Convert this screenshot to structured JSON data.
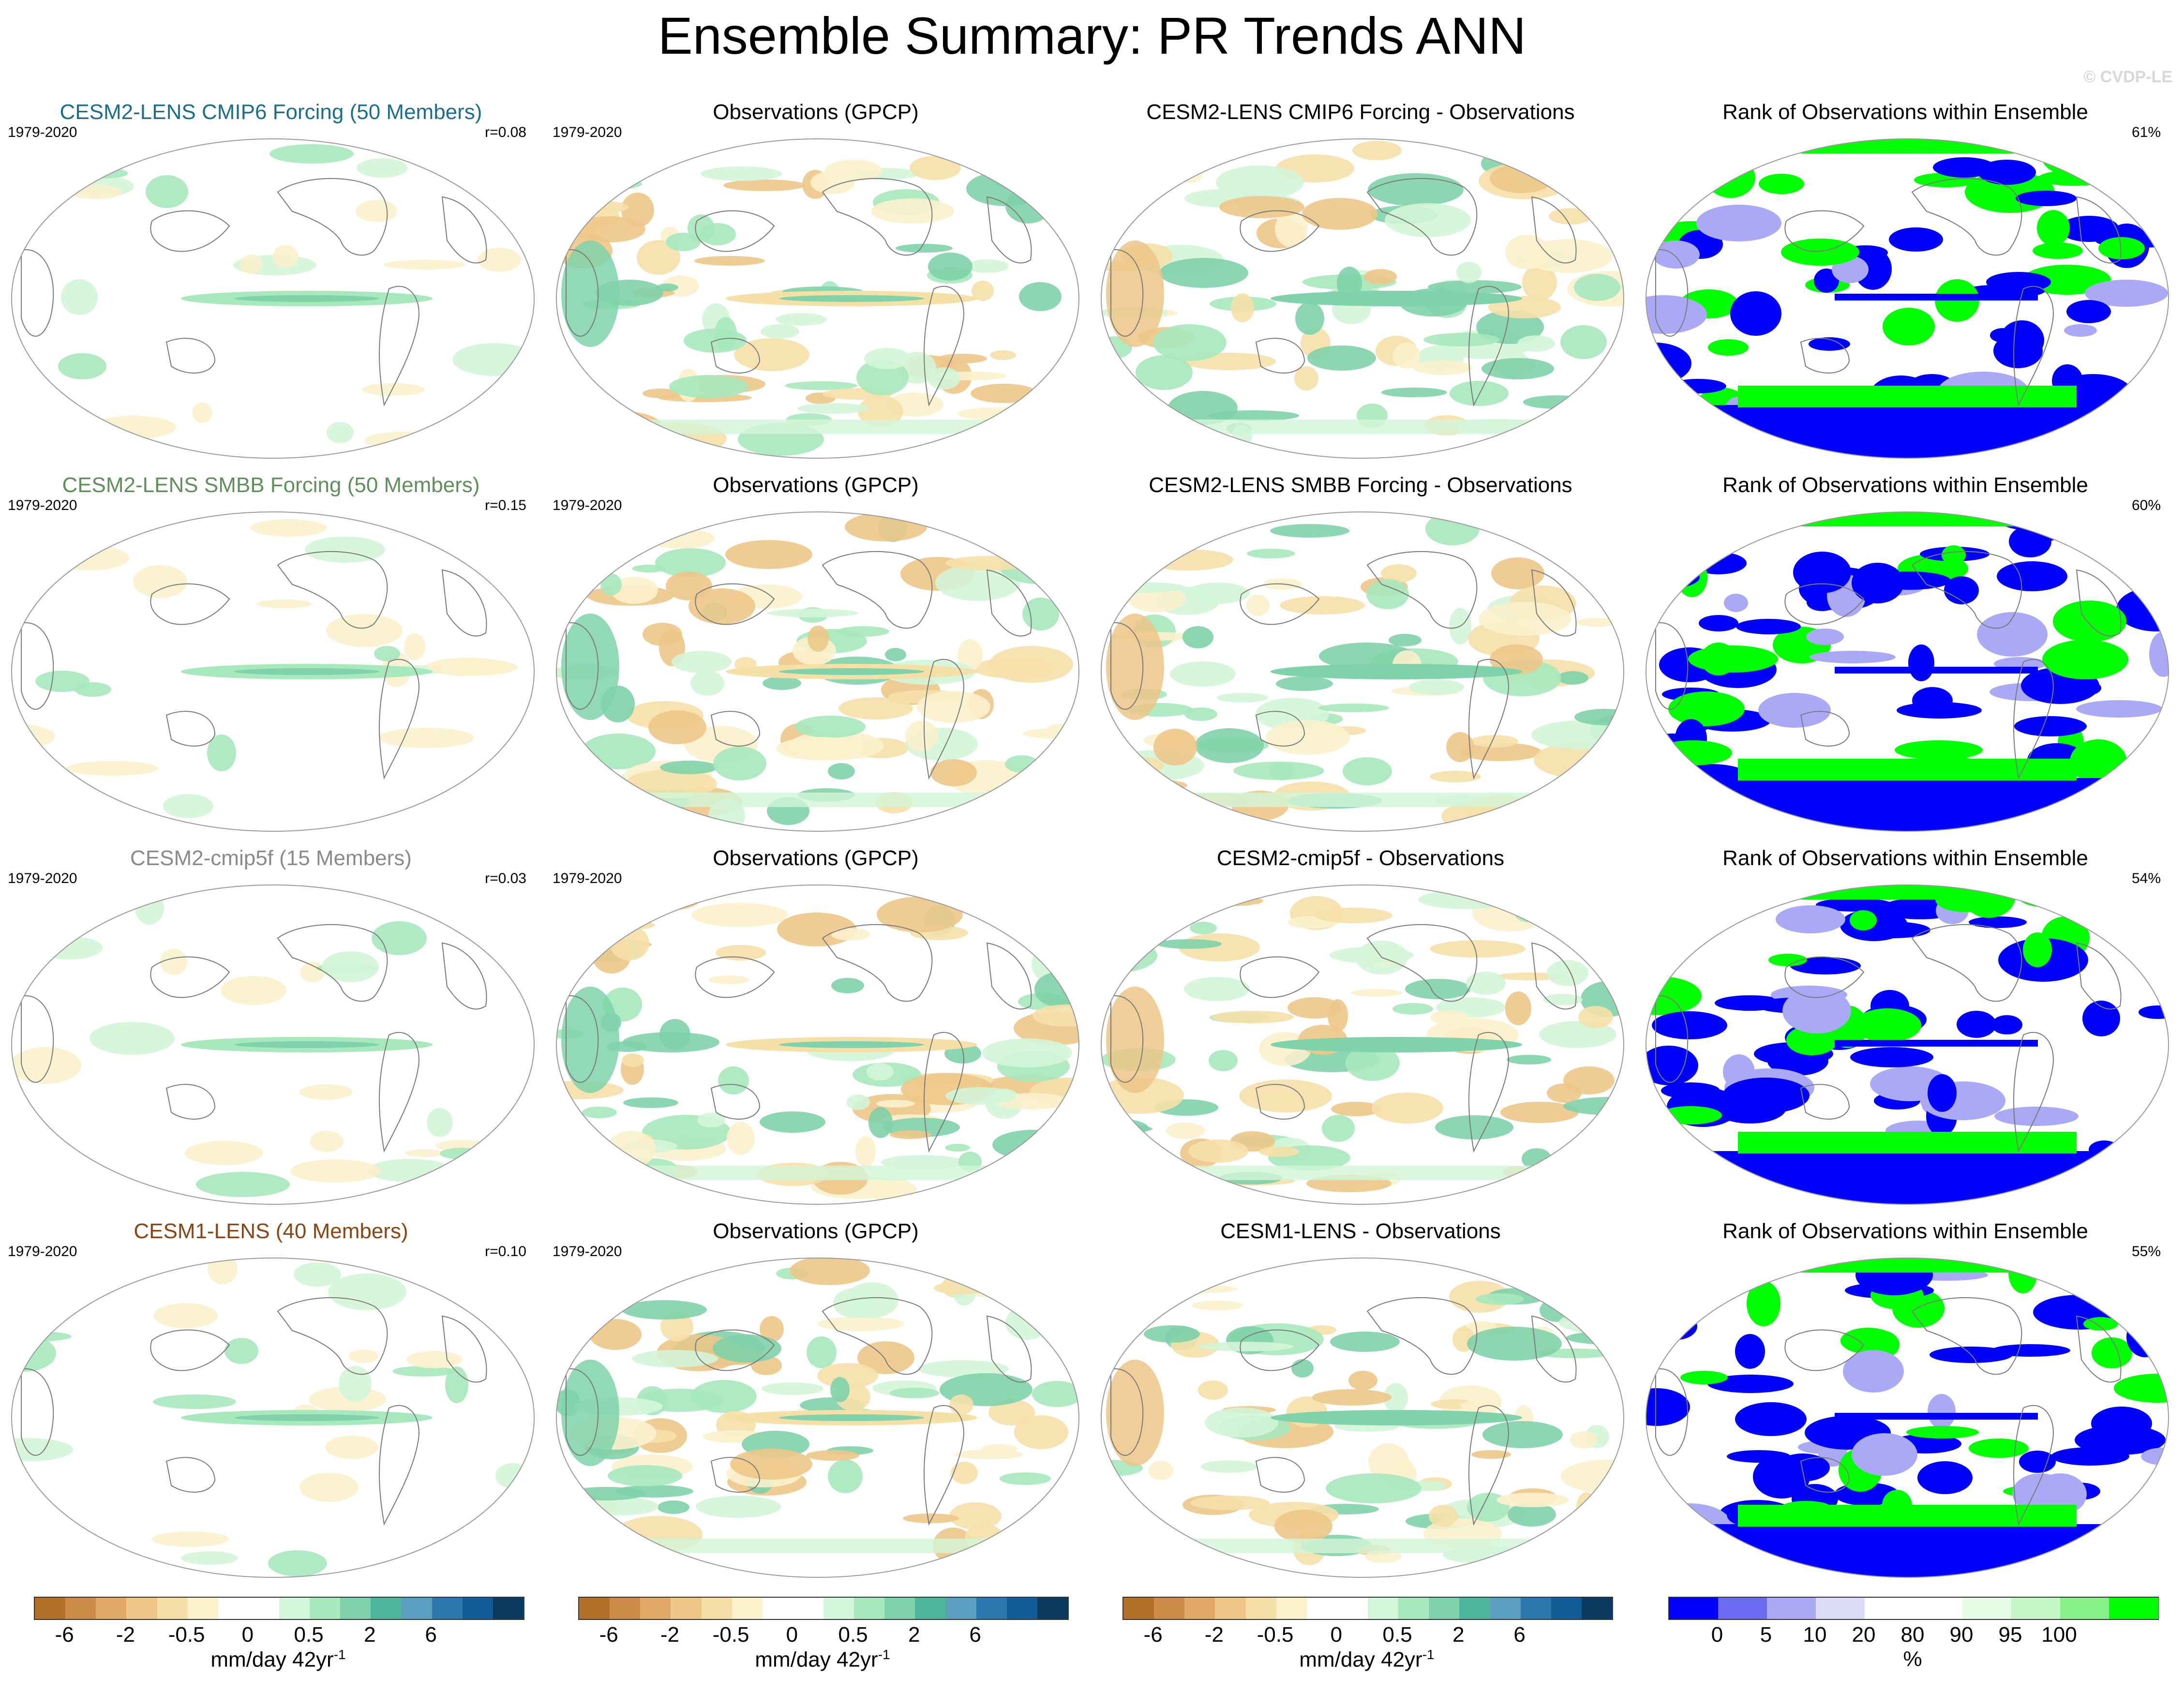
{
  "title": "Ensemble Summary: PR Trends ANN",
  "copyright": "© CVDP-LE",
  "period": "1979-2020",
  "rows": [
    {
      "model": "CESM2-LENS CMIP6 Forcing (50 Members)",
      "model_color": "#1c6f8c",
      "r": "r=0.08",
      "obs": "Observations (GPCP)",
      "diff": "CESM2-LENS CMIP6 Forcing - Observations",
      "rank": "Rank of Observations within Ensemble",
      "pct": "61%"
    },
    {
      "model": "CESM2-LENS SMBB Forcing (50 Members)",
      "model_color": "#5f8f5a",
      "r": "r=0.15",
      "obs": "Observations (GPCP)",
      "diff": "CESM2-LENS SMBB Forcing - Observations",
      "rank": "Rank of Observations within Ensemble",
      "pct": "60%"
    },
    {
      "model": "CESM2-cmip5f (15 Members)",
      "model_color": "#8a8a8a",
      "r": "r=0.03",
      "obs": "Observations (GPCP)",
      "diff": "CESM2-cmip5f - Observations",
      "rank": "Rank of Observations within Ensemble",
      "pct": "54%"
    },
    {
      "model": "CESM1-LENS (40 Members)",
      "model_color": "#8b4513",
      "r": "r=0.10",
      "obs": "Observations (GPCP)",
      "diff": "CESM1-LENS - Observations",
      "rank": "Rank of Observations within Ensemble",
      "pct": "55%"
    }
  ],
  "colorbar_trend": {
    "colors": [
      "#b2702a",
      "#cd8b4a",
      "#e0a968",
      "#edc688",
      "#f5e0a8",
      "#fbf1cc",
      "#ffffff",
      "#ffffff",
      "#d3f5d8",
      "#a7e8bd",
      "#7fd2aa",
      "#4fb59a",
      "#5c9ec0",
      "#2a78ad",
      "#125b95",
      "#0b3b5e"
    ],
    "ticks": [
      "-6",
      "-2",
      "-0.5",
      "0",
      "0.5",
      "2",
      "6"
    ],
    "units": "mm/day 42yr",
    "units_sup": "-1"
  },
  "colorbar_rank": {
    "colors": [
      "#0000ff",
      "#6a6af5",
      "#a9a9f5",
      "#dcdcf8",
      "#ffffff",
      "#ffffff",
      "#e4fbe4",
      "#c5f7c5",
      "#88f088",
      "#00ff00"
    ],
    "ticks": [
      "0",
      "5",
      "10",
      "20",
      "80",
      "90",
      "95",
      "100"
    ],
    "units": "%"
  }
}
